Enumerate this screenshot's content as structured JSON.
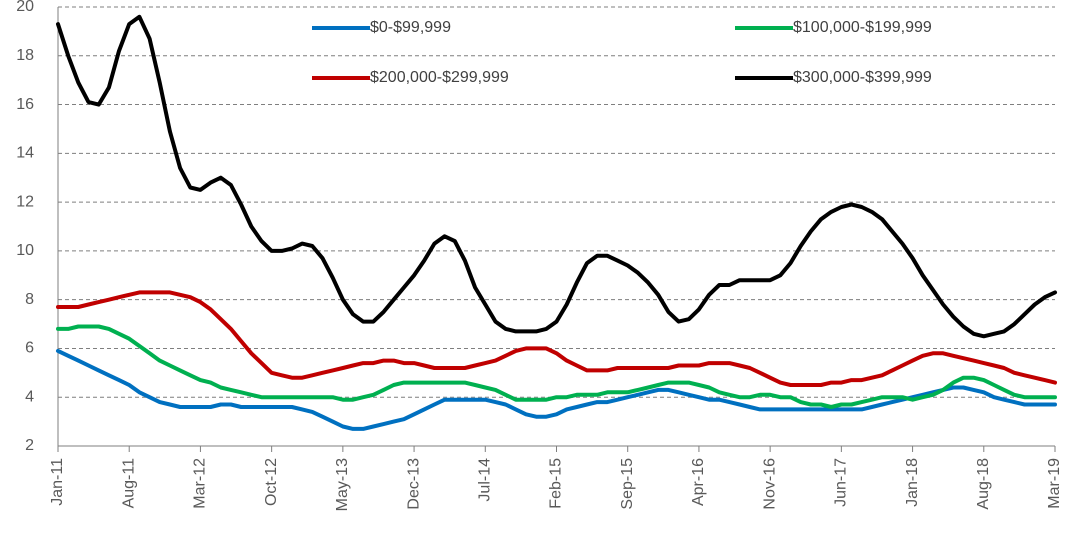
{
  "chart_data": {
    "type": "line",
    "categories": [
      "Jan-11",
      null,
      null,
      null,
      null,
      null,
      null,
      "Aug-11",
      null,
      null,
      null,
      null,
      null,
      null,
      "Mar-12",
      null,
      null,
      null,
      null,
      null,
      null,
      "Oct-12",
      null,
      null,
      null,
      null,
      null,
      null,
      "May-13",
      null,
      null,
      null,
      null,
      null,
      null,
      "Dec-13",
      null,
      null,
      null,
      null,
      null,
      null,
      "Jul-14",
      null,
      null,
      null,
      null,
      null,
      null,
      "Feb-15",
      null,
      null,
      null,
      null,
      null,
      null,
      "Sep-15",
      null,
      null,
      null,
      null,
      null,
      null,
      "Apr-16",
      null,
      null,
      null,
      null,
      null,
      null,
      "Nov-16",
      null,
      null,
      null,
      null,
      null,
      null,
      "Jun-17",
      null,
      null,
      null,
      null,
      null,
      null,
      "Jan-18",
      null,
      null,
      null,
      null,
      null,
      null,
      "Aug-18",
      null,
      null,
      null,
      null,
      null,
      null,
      "Mar-19"
    ],
    "series": [
      {
        "name": "$0-$99,999",
        "color": "#0070c0",
        "values": [
          5.9,
          5.7,
          5.5,
          5.3,
          5.1,
          4.9,
          4.7,
          4.5,
          4.2,
          4.0,
          3.8,
          3.7,
          3.6,
          3.6,
          3.6,
          3.6,
          3.7,
          3.7,
          3.6,
          3.6,
          3.6,
          3.6,
          3.6,
          3.6,
          3.5,
          3.4,
          3.2,
          3.0,
          2.8,
          2.7,
          2.7,
          2.8,
          2.9,
          3.0,
          3.1,
          3.3,
          3.5,
          3.7,
          3.9,
          3.9,
          3.9,
          3.9,
          3.9,
          3.8,
          3.7,
          3.5,
          3.3,
          3.2,
          3.2,
          3.3,
          3.5,
          3.6,
          3.7,
          3.8,
          3.8,
          3.9,
          4.0,
          4.1,
          4.2,
          4.3,
          4.3,
          4.2,
          4.1,
          4.0,
          3.9,
          3.9,
          3.8,
          3.7,
          3.6,
          3.5,
          3.5,
          3.5,
          3.5,
          3.5,
          3.5,
          3.5,
          3.5,
          3.5,
          3.5,
          3.5,
          3.6,
          3.7,
          3.8,
          3.9,
          4.0,
          4.1,
          4.2,
          4.3,
          4.4,
          4.4,
          4.3,
          4.2,
          4.0,
          3.9,
          3.8,
          3.7,
          3.7,
          3.7,
          3.7
        ]
      },
      {
        "name": "$100,000-$199,999",
        "color": "#00b050",
        "values": [
          6.8,
          6.8,
          6.9,
          6.9,
          6.9,
          6.8,
          6.6,
          6.4,
          6.1,
          5.8,
          5.5,
          5.3,
          5.1,
          4.9,
          4.7,
          4.6,
          4.4,
          4.3,
          4.2,
          4.1,
          4.0,
          4.0,
          4.0,
          4.0,
          4.0,
          4.0,
          4.0,
          4.0,
          3.9,
          3.9,
          4.0,
          4.1,
          4.3,
          4.5,
          4.6,
          4.6,
          4.6,
          4.6,
          4.6,
          4.6,
          4.6,
          4.5,
          4.4,
          4.3,
          4.1,
          3.9,
          3.9,
          3.9,
          3.9,
          4.0,
          4.0,
          4.1,
          4.1,
          4.1,
          4.2,
          4.2,
          4.2,
          4.3,
          4.4,
          4.5,
          4.6,
          4.6,
          4.6,
          4.5,
          4.4,
          4.2,
          4.1,
          4.0,
          4.0,
          4.1,
          4.1,
          4.0,
          4.0,
          3.8,
          3.7,
          3.7,
          3.6,
          3.7,
          3.7,
          3.8,
          3.9,
          4.0,
          4.0,
          4.0,
          3.9,
          4.0,
          4.1,
          4.3,
          4.6,
          4.8,
          4.8,
          4.7,
          4.5,
          4.3,
          4.1,
          4.0,
          4.0,
          4.0,
          4.0
        ]
      },
      {
        "name": "$200,000-$299,999",
        "color": "#c00000",
        "values": [
          7.7,
          7.7,
          7.7,
          7.8,
          7.9,
          8.0,
          8.1,
          8.2,
          8.3,
          8.3,
          8.3,
          8.3,
          8.2,
          8.1,
          7.9,
          7.6,
          7.2,
          6.8,
          6.3,
          5.8,
          5.4,
          5.0,
          4.9,
          4.8,
          4.8,
          4.9,
          5.0,
          5.1,
          5.2,
          5.3,
          5.4,
          5.4,
          5.5,
          5.5,
          5.4,
          5.4,
          5.3,
          5.2,
          5.2,
          5.2,
          5.2,
          5.3,
          5.4,
          5.5,
          5.7,
          5.9,
          6.0,
          6.0,
          6.0,
          5.8,
          5.5,
          5.3,
          5.1,
          5.1,
          5.1,
          5.2,
          5.2,
          5.2,
          5.2,
          5.2,
          5.2,
          5.3,
          5.3,
          5.3,
          5.4,
          5.4,
          5.4,
          5.3,
          5.2,
          5.0,
          4.8,
          4.6,
          4.5,
          4.5,
          4.5,
          4.5,
          4.6,
          4.6,
          4.7,
          4.7,
          4.8,
          4.9,
          5.1,
          5.3,
          5.5,
          5.7,
          5.8,
          5.8,
          5.7,
          5.6,
          5.5,
          5.4,
          5.3,
          5.2,
          5.0,
          4.9,
          4.8,
          4.7,
          4.6
        ]
      },
      {
        "name": "$300,000-$399,999",
        "color": "#000000",
        "values": [
          19.3,
          18.0,
          16.9,
          16.1,
          16.0,
          16.7,
          18.2,
          19.3,
          19.6,
          18.7,
          16.9,
          14.9,
          13.4,
          12.6,
          12.5,
          12.8,
          13.0,
          12.7,
          11.9,
          11.0,
          10.4,
          10.0,
          10.0,
          10.1,
          10.3,
          10.2,
          9.7,
          8.9,
          8.0,
          7.4,
          7.1,
          7.1,
          7.5,
          8.0,
          8.5,
          9.0,
          9.6,
          10.3,
          10.6,
          10.4,
          9.6,
          8.5,
          7.8,
          7.1,
          6.8,
          6.7,
          6.7,
          6.7,
          6.8,
          7.1,
          7.8,
          8.7,
          9.5,
          9.8,
          9.8,
          9.6,
          9.4,
          9.1,
          8.7,
          8.2,
          7.5,
          7.1,
          7.2,
          7.6,
          8.2,
          8.6,
          8.6,
          8.8,
          8.8,
          8.8,
          8.8,
          9.0,
          9.5,
          10.2,
          10.8,
          11.3,
          11.6,
          11.8,
          11.9,
          11.8,
          11.6,
          11.3,
          10.8,
          10.3,
          9.7,
          9.0,
          8.4,
          7.8,
          7.3,
          6.9,
          6.6,
          6.5,
          6.6,
          6.7,
          7.0,
          7.4,
          7.8,
          8.1,
          8.3
        ]
      }
    ],
    "ylim": [
      2,
      20
    ],
    "yticks": [
      2,
      4,
      6,
      8,
      10,
      12,
      14,
      16,
      18,
      20
    ],
    "grid": true
  }
}
